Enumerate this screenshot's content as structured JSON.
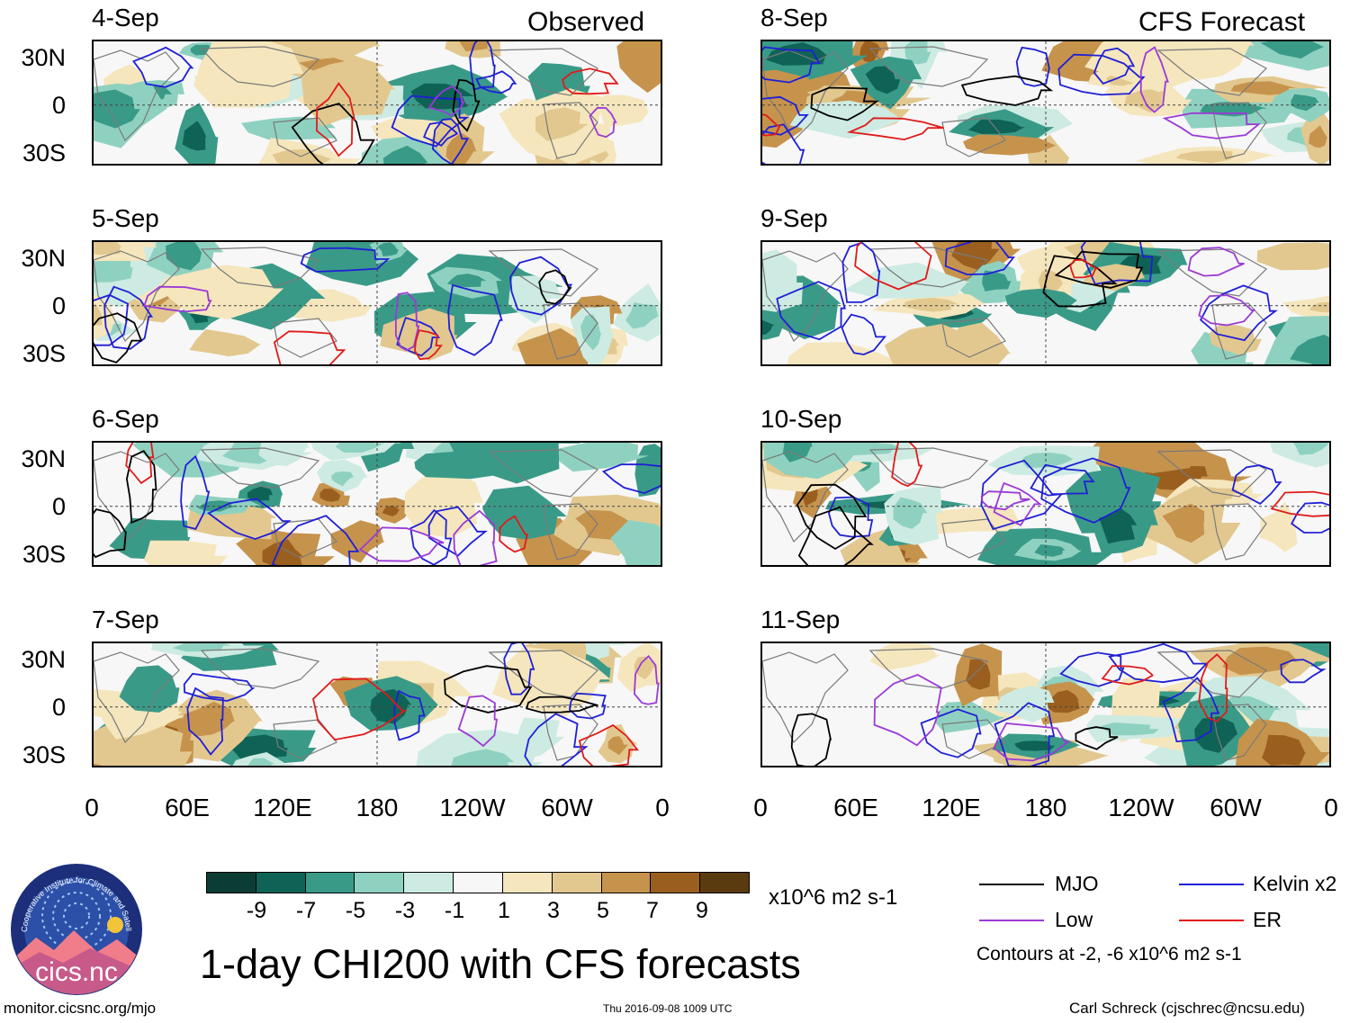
{
  "columns": {
    "observed_title": "Observed",
    "forecast_title": "CFS Forecast"
  },
  "panels_left": [
    {
      "date": "4-Sep"
    },
    {
      "date": "5-Sep"
    },
    {
      "date": "6-Sep"
    },
    {
      "date": "7-Sep"
    }
  ],
  "panels_right": [
    {
      "date": "8-Sep"
    },
    {
      "date": "9-Sep"
    },
    {
      "date": "10-Sep"
    },
    {
      "date": "11-Sep"
    }
  ],
  "y_axis_labels": [
    "30N",
    "0",
    "30S"
  ],
  "x_axis_labels": [
    "0",
    "60E",
    "120E",
    "180",
    "120W",
    "60W",
    "0"
  ],
  "colorbar": {
    "colors": [
      "#0b3d35",
      "#0f6356",
      "#3a9a88",
      "#8fd1c0",
      "#cdebe2",
      "#f7f7f7",
      "#f5e6bd",
      "#e2c88f",
      "#c6934d",
      "#9a5f1f",
      "#5a3a0f"
    ],
    "tick_labels": [
      "-9",
      "-7",
      "-5",
      "-3",
      "-1",
      "1",
      "3",
      "5",
      "7",
      "9"
    ],
    "units": "x10^6 m2 s-1"
  },
  "legend": {
    "items": [
      {
        "label": "MJO",
        "color": "#000000"
      },
      {
        "label": "Kelvin x2",
        "color": "#1f1fd6"
      },
      {
        "label": "Low",
        "color": "#9b3ad6"
      },
      {
        "label": "ER",
        "color": "#e01b1b"
      }
    ],
    "contour_note": "Contours at -2, -6 x10^6 m2 s-1"
  },
  "logo": {
    "text": "cics.nc",
    "arc_text": "Cooperative Institute for Climate and Satellites"
  },
  "main_title": "1-day CHI200 with CFS forecasts",
  "footer": {
    "left": "monitor.cicsnc.org/mjo",
    "center": "Thu 2016-09-08 1009 UTC",
    "right": "Carl Schreck (cjschrec@ncsu.edu)"
  }
}
